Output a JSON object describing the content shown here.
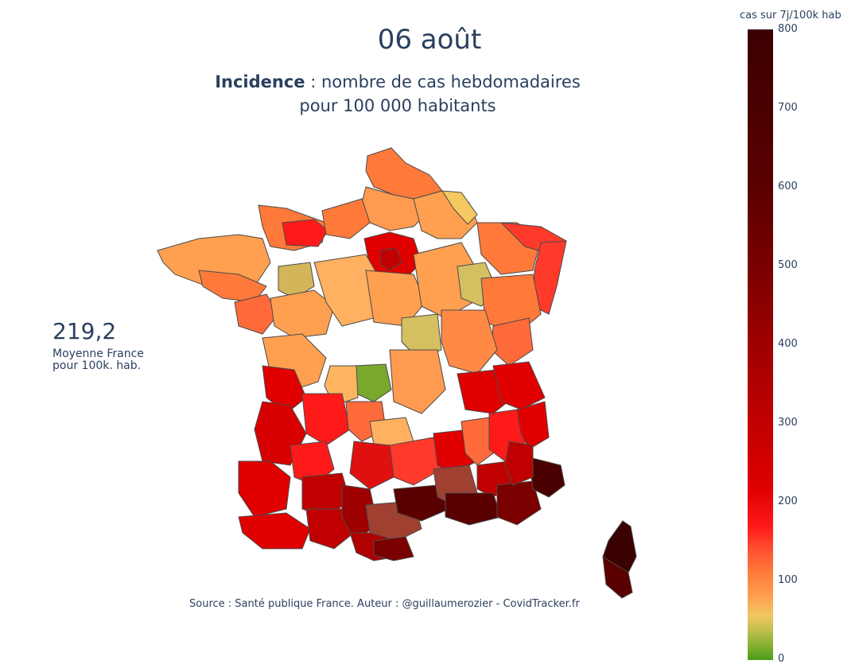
{
  "header": {
    "date": "06 août",
    "subtitle_bold": "Incidence",
    "subtitle_line1_rest": " : nombre de cas hebdomadaires",
    "subtitle_line2": "pour 100 000 habitants"
  },
  "average": {
    "value": "219,2",
    "label_line1": "Moyenne France",
    "label_line2": "pour 100k. hab."
  },
  "source": "Source : Santé publique France. Auteur : @guillaumerozier - CovidTracker.fr",
  "colorbar": {
    "title": "cas sur 7j/100k hab",
    "ticks": [
      "800",
      "700",
      "600",
      "500",
      "400",
      "300",
      "200",
      "100",
      "0"
    ],
    "colors": {
      "high": "#3b0000",
      "mid": "#e00000",
      "low": "#ffa050",
      "min": "#4a9c1c"
    }
  }
}
